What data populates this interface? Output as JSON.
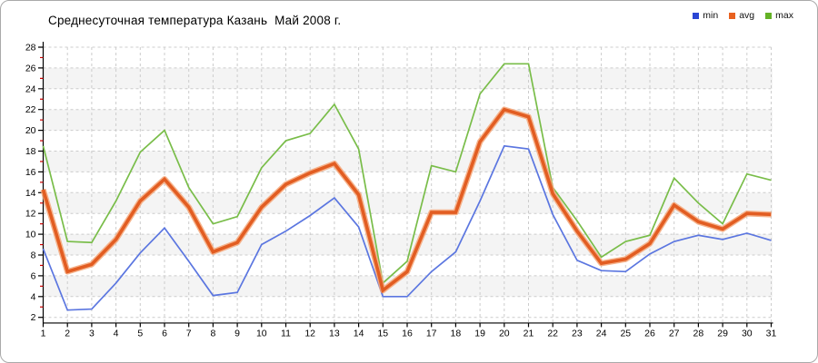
{
  "chart_data": {
    "type": "line",
    "title": "Среднесуточная температура Казань  Май 2008 г.",
    "xlabel": "",
    "ylabel": "",
    "ylim": [
      1.5,
      28
    ],
    "ytick_min": 2,
    "ytick_max": 28,
    "ytick_step": 2,
    "minor_ytick_note": "red minor ticks at odd values",
    "grid": "dashed, horizontal and vertical",
    "legend_position": "top-right",
    "band_pairs": [
      [
        4,
        6
      ],
      [
        8,
        10
      ],
      [
        12,
        14
      ],
      [
        16,
        18
      ],
      [
        20,
        22
      ],
      [
        24,
        26
      ]
    ],
    "days": [
      1,
      2,
      3,
      4,
      5,
      6,
      7,
      8,
      9,
      10,
      11,
      12,
      13,
      14,
      15,
      16,
      17,
      18,
      19,
      20,
      21,
      22,
      23,
      24,
      25,
      26,
      27,
      28,
      29,
      30,
      31
    ],
    "series": [
      {
        "name": "min",
        "color": "#5b76e0",
        "legend_color": "#2a46d4",
        "values": [
          8.6,
          2.7,
          2.8,
          5.3,
          8.2,
          10.6,
          7.4,
          4.1,
          4.4,
          9.0,
          10.3,
          11.8,
          13.5,
          10.7,
          4.0,
          4.0,
          6.4,
          8.3,
          13.2,
          18.5,
          18.2,
          11.9,
          7.5,
          6.5,
          6.4,
          8.1,
          9.3,
          9.9,
          9.5,
          10.1,
          9.4
        ]
      },
      {
        "name": "avg",
        "color": "#e25d22",
        "halo_color": "rgba(244,166,120,0.85)",
        "legend_color": "#e8611f",
        "values": [
          14.3,
          6.4,
          7.1,
          9.5,
          13.2,
          15.3,
          12.6,
          8.3,
          9.2,
          12.6,
          14.8,
          15.9,
          16.8,
          13.8,
          4.6,
          6.4,
          12.1,
          12.1,
          18.9,
          22.0,
          21.3,
          13.9,
          10.3,
          7.2,
          7.6,
          9.1,
          12.8,
          11.2,
          10.5,
          12.0,
          11.9
        ]
      },
      {
        "name": "max",
        "color": "#79bd49",
        "legend_color": "#64b226",
        "values": [
          18.5,
          9.3,
          9.2,
          13.2,
          17.9,
          20.0,
          14.5,
          11.0,
          11.7,
          16.4,
          19.0,
          19.7,
          22.5,
          18.2,
          5.3,
          7.4,
          16.6,
          16.0,
          23.5,
          26.4,
          26.4,
          14.5,
          11.3,
          7.8,
          9.3,
          9.9,
          15.4,
          13.0,
          11.0,
          15.8,
          15.2
        ]
      }
    ],
    "colors": {
      "band": "#f4f4f4",
      "grid": "#cccccc",
      "axis": "#000000",
      "minor_tick": "#cc0000",
      "text": "#000000",
      "border": "#a9a9a9",
      "background": "#ffffff"
    }
  }
}
